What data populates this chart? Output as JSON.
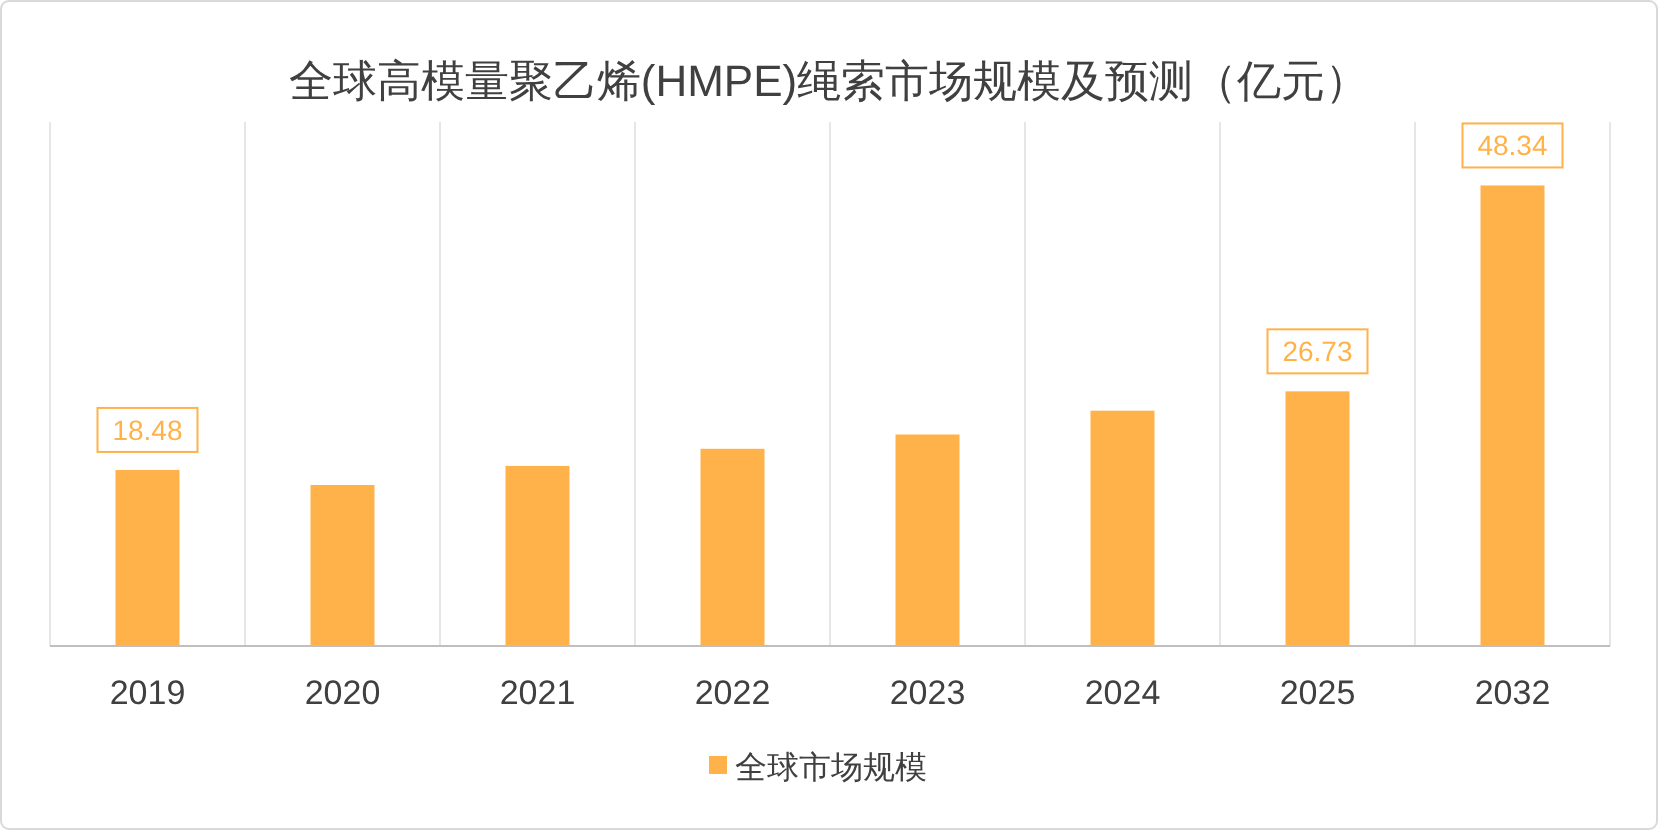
{
  "chart_data": {
    "type": "bar",
    "title": "全球高模量聚乙烯(HMPE)绳索市场规模及预测（亿元）",
    "categories": [
      "2019",
      "2020",
      "2021",
      "2022",
      "2023",
      "2024",
      "2025",
      "2032"
    ],
    "series": [
      {
        "name": "全球市场规模",
        "color": "#ffb24a",
        "values": [
          18.48,
          16.9,
          18.9,
          20.7,
          22.2,
          24.7,
          26.73,
          48.34
        ],
        "value_labels": [
          "18.48",
          null,
          null,
          null,
          null,
          null,
          "26.73",
          "48.34"
        ]
      }
    ],
    "ylim": [
      0,
      55
    ],
    "tick_labels": "x",
    "grid": "x",
    "legend": "bottom"
  }
}
